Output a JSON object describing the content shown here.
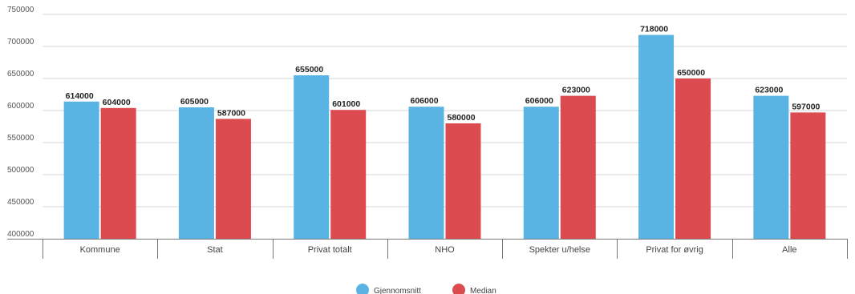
{
  "chart_data": {
    "type": "bar",
    "title": "",
    "xlabel": "",
    "ylabel": "",
    "categories": [
      "Kommune",
      "Stat",
      "Privat totalt",
      "NHO",
      "Spekter u/helse",
      "Privat for øvrig",
      "Alle"
    ],
    "series": [
      {
        "name": "Gjennomsnitt",
        "color": "#5ab4e3",
        "values": [
          614000,
          605000,
          655000,
          606000,
          606000,
          718000,
          623000
        ]
      },
      {
        "name": "Median",
        "color": "#dc4b50",
        "values": [
          604000,
          587000,
          601000,
          580000,
          623000,
          650000,
          597000
        ]
      }
    ],
    "ylim": [
      400000,
      750000
    ],
    "yticks": [
      "400000",
      "450000",
      "500000",
      "550000",
      "600000",
      "650000",
      "700000",
      "750000"
    ],
    "grid": true,
    "legend_position": "bottom-center",
    "data_labels": true
  }
}
